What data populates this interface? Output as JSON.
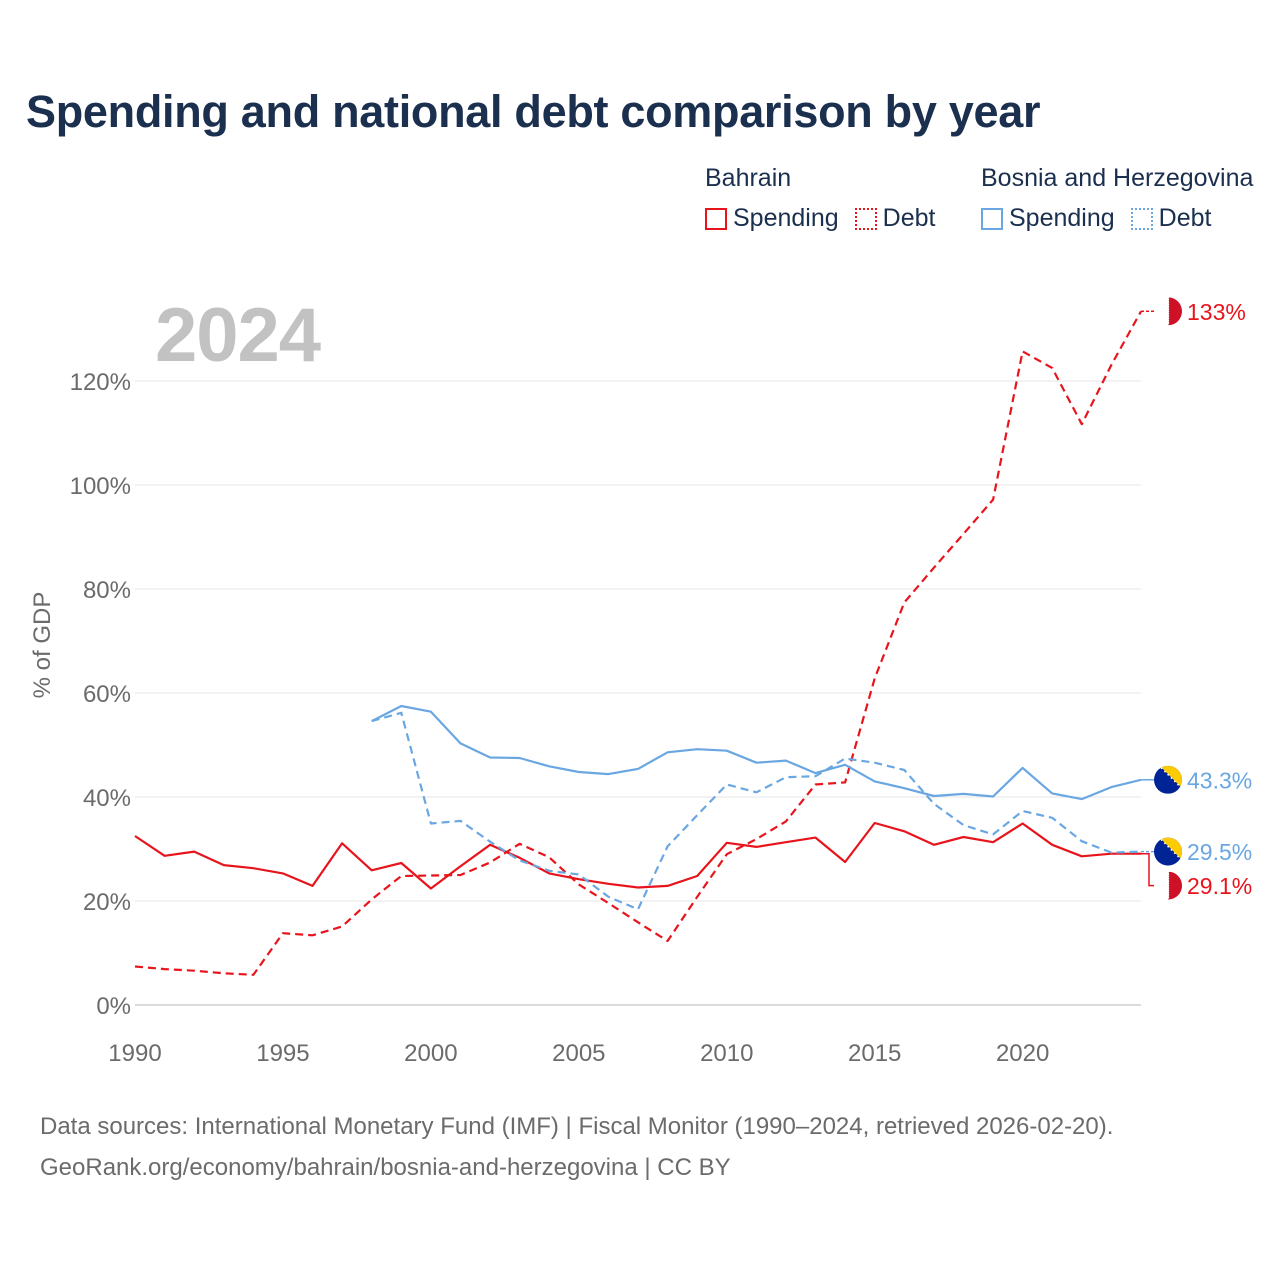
{
  "title": "Spending and national debt comparison by year",
  "year_label": "2024",
  "legend": {
    "bahrain": {
      "country": "Bahrain",
      "spending": "Spending",
      "debt": "Debt",
      "color": "#e8141c"
    },
    "bosnia": {
      "country": "Bosnia and Herzegovina",
      "spending": "Spending",
      "debt": "Debt",
      "color": "#6aa7e2"
    }
  },
  "sources": {
    "line1": "Data sources: International Monetary Fund (IMF) | Fiscal Monitor (1990–2024, retrieved 2026-02-20).",
    "line2": "GeoRank.org/economy/bahrain/bosnia-and-herzegovina | CC BY"
  },
  "chart_data": {
    "type": "line",
    "title": "Spending and national debt comparison by year",
    "xlabel": "",
    "ylabel": "% of GDP",
    "xlim": [
      1990,
      2024
    ],
    "ylim": [
      0,
      135
    ],
    "x_ticks": [
      1990,
      1995,
      2000,
      2005,
      2010,
      2015,
      2020
    ],
    "x_tick_labels": [
      "1990",
      "1995",
      "2000",
      "2005",
      "2010",
      "2015",
      "2020"
    ],
    "y_ticks": [
      0,
      20,
      40,
      60,
      80,
      100,
      120
    ],
    "y_tick_labels": [
      "0%",
      "20%",
      "40%",
      "60%",
      "80%",
      "100%",
      "120%"
    ],
    "grid": true,
    "legend_position": "top-right",
    "series": [
      {
        "name": "Bahrain Spending",
        "country": "Bahrain",
        "kind": "spending",
        "style": "solid",
        "color": "#e8141c",
        "x": [
          1990,
          1991,
          1992,
          1993,
          1994,
          1995,
          1996,
          1997,
          1998,
          1999,
          2000,
          2001,
          2002,
          2003,
          2004,
          2005,
          2006,
          2007,
          2008,
          2009,
          2010,
          2011,
          2012,
          2013,
          2014,
          2015,
          2016,
          2017,
          2018,
          2019,
          2020,
          2021,
          2022,
          2023,
          2024
        ],
        "values": [
          32.5,
          28.7,
          29.5,
          26.9,
          26.3,
          25.3,
          22.9,
          31.1,
          25.9,
          27.3,
          22.4,
          26.7,
          30.8,
          28.3,
          25.3,
          24.2,
          23.3,
          22.6,
          22.9,
          24.8,
          31.2,
          30.4,
          31.3,
          32.2,
          27.5,
          35.0,
          33.4,
          30.8,
          32.3,
          31.3,
          34.9,
          30.8,
          28.6,
          29.1,
          29.1
        ],
        "end_label": "29.1%"
      },
      {
        "name": "Bahrain Debt",
        "country": "Bahrain",
        "kind": "debt",
        "style": "dashed",
        "color": "#e8141c",
        "x": [
          1990,
          1991,
          1992,
          1993,
          1994,
          1995,
          1996,
          1997,
          1998,
          1999,
          2000,
          2001,
          2002,
          2003,
          2004,
          2005,
          2006,
          2007,
          2008,
          2009,
          2010,
          2011,
          2012,
          2013,
          2014,
          2015,
          2016,
          2017,
          2018,
          2019,
          2020,
          2021,
          2022,
          2023,
          2024
        ],
        "values": [
          7.4,
          6.9,
          6.6,
          6.1,
          5.8,
          13.8,
          13.4,
          15.1,
          20.3,
          24.8,
          24.9,
          25.0,
          27.4,
          31.0,
          28.4,
          23.2,
          19.6,
          15.9,
          12.3,
          20.8,
          29.0,
          31.9,
          35.3,
          42.4,
          42.8,
          62.8,
          77.4,
          84.1,
          90.6,
          97.2,
          125.7,
          122.5,
          111.7,
          123.1,
          133.4
        ],
        "end_label": "133%"
      },
      {
        "name": "Bosnia and Herzegovina Spending",
        "country": "Bosnia and Herzegovina",
        "kind": "spending",
        "style": "solid",
        "color": "#6aa7e2",
        "x": [
          1998,
          1999,
          2000,
          2001,
          2002,
          2003,
          2004,
          2005,
          2006,
          2007,
          2008,
          2009,
          2010,
          2011,
          2012,
          2013,
          2014,
          2015,
          2016,
          2017,
          2018,
          2019,
          2020,
          2021,
          2022,
          2023,
          2024
        ],
        "values": [
          54.6,
          57.5,
          56.4,
          50.3,
          47.6,
          47.5,
          45.9,
          44.8,
          44.4,
          45.4,
          48.6,
          49.2,
          48.9,
          46.6,
          47.0,
          44.6,
          46.2,
          43.0,
          41.7,
          40.2,
          40.6,
          40.1,
          45.6,
          40.7,
          39.6,
          41.9,
          43.3
        ],
        "end_label": "43.3%"
      },
      {
        "name": "Bosnia and Herzegovina Debt",
        "country": "Bosnia and Herzegovina",
        "kind": "debt",
        "style": "dashed",
        "color": "#6aa7e2",
        "x": [
          1998,
          1999,
          2000,
          2001,
          2002,
          2003,
          2004,
          2005,
          2006,
          2007,
          2008,
          2009,
          2010,
          2011,
          2012,
          2013,
          2014,
          2015,
          2016,
          2017,
          2018,
          2019,
          2020,
          2021,
          2022,
          2023,
          2024
        ],
        "values": [
          54.6,
          56.2,
          34.9,
          35.4,
          31.4,
          27.8,
          25.8,
          25.1,
          20.8,
          18.4,
          30.5,
          36.5,
          42.4,
          40.9,
          43.8,
          44.0,
          47.4,
          46.6,
          45.2,
          38.7,
          34.6,
          32.8,
          37.3,
          36.0,
          31.5,
          29.3,
          29.5
        ],
        "end_label": "29.5%"
      }
    ]
  }
}
